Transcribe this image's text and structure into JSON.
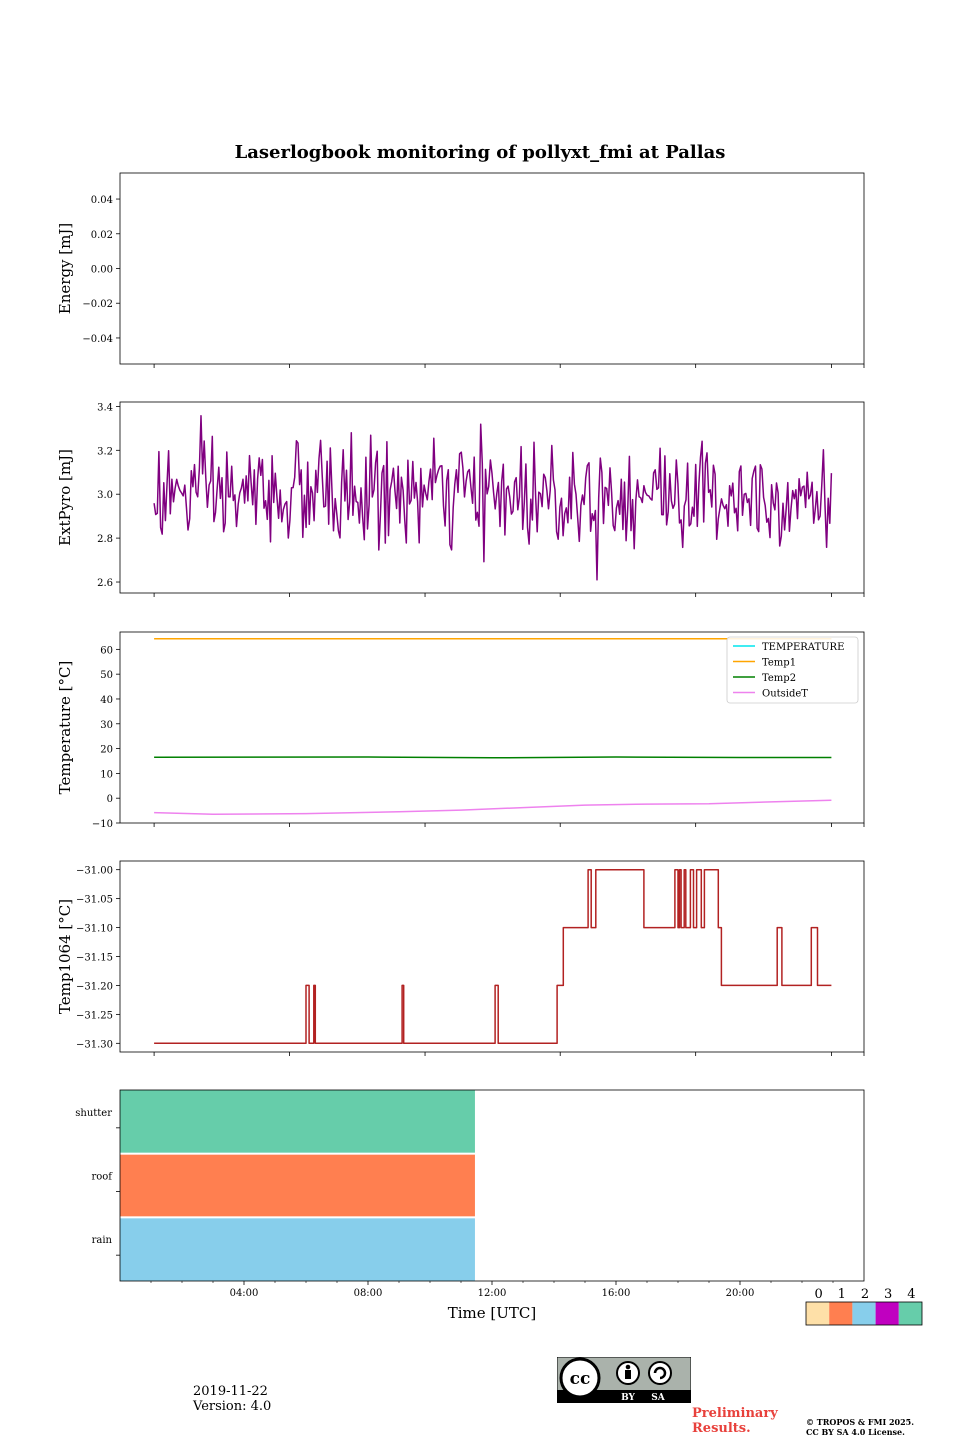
{
  "chart_data": {
    "title": "Laserlogbook monitoring of pollyxt_fmi at Pallas",
    "xlabel": "Time [UTC]",
    "x_range_hours": [
      0,
      24
    ],
    "x_ticks": [
      "04:00",
      "08:00",
      "12:00",
      "16:00",
      "20:00"
    ],
    "panels": [
      {
        "type": "line",
        "ylabel": "Energy [mJ]",
        "ylim": [
          -0.055,
          0.055
        ],
        "yticks": [
          "0.04",
          "0.02",
          "0.00",
          "−0.02",
          "−0.04"
        ],
        "series": []
      },
      {
        "type": "line",
        "ylabel": "ExtPyro [mJ]",
        "ylim": [
          2.55,
          3.42
        ],
        "yticks": [
          "3.4",
          "3.2",
          "3.0",
          "2.8",
          "2.6"
        ],
        "series": [
          {
            "name": "ExtPyro",
            "color": "#800080",
            "x_start": 1.1,
            "x_end": 22.95,
            "mean": 3.0,
            "std": 0.12,
            "n": 420
          }
        ]
      },
      {
        "type": "line",
        "ylabel": "Temperature [°C]",
        "ylim": [
          -10,
          67
        ],
        "yticks": [
          "60",
          "50",
          "40",
          "30",
          "20",
          "10",
          "0",
          "−10"
        ],
        "legend": [
          "TEMPERATURE",
          "Temp1",
          "Temp2",
          "OutsideT"
        ],
        "legend_position": "top-right",
        "series": [
          {
            "name": "TEMPERATURE",
            "color": "#00e5ee",
            "x": [],
            "y": []
          },
          {
            "name": "Temp1",
            "color": "#ffa500",
            "x": [
              1.1,
              22.95
            ],
            "y": [
              64.3,
              64.3
            ]
          },
          {
            "name": "Temp2",
            "color": "#008000",
            "x": [
              1.1,
              8,
              12,
              16,
              20,
              22.95
            ],
            "y": [
              16.5,
              16.6,
              16.3,
              16.6,
              16.4,
              16.4
            ]
          },
          {
            "name": "OutsideT",
            "color": "#ee82ee",
            "x": [
              1.1,
              3,
              6,
              9,
              11,
              13,
              15,
              17,
              19,
              21,
              22.95
            ],
            "y": [
              -5.8,
              -6.5,
              -6.2,
              -5.5,
              -4.8,
              -3.8,
              -2.8,
              -2.4,
              -2.2,
              -1.5,
              -0.8
            ]
          }
        ]
      },
      {
        "type": "line",
        "ylabel": "Temp1064 [°C]",
        "ylim": [
          -31.315,
          -30.985
        ],
        "yticks": [
          "−31.00",
          "−31.05",
          "−31.10",
          "−31.15",
          "−31.20",
          "−31.25",
          "−31.30"
        ],
        "series": [
          {
            "name": "Temp1064",
            "color": "#b22222",
            "x": [
              1.1,
              6.0,
              6.0,
              6.1,
              6.1,
              6.25,
              6.25,
              6.3,
              6.3,
              9.1,
              9.1,
              9.15,
              9.15,
              12.1,
              12.1,
              12.2,
              12.2,
              14.1,
              14.1,
              14.3,
              14.3,
              15.1,
              15.1,
              15.2,
              15.2,
              15.35,
              15.35,
              15.4,
              15.4,
              16.9,
              16.9,
              17.9,
              17.9,
              18.0,
              18.0,
              18.05,
              18.05,
              18.1,
              18.1,
              18.2,
              18.2,
              18.25,
              18.25,
              18.4,
              18.4,
              18.5,
              18.5,
              18.6,
              18.6,
              18.75,
              18.75,
              18.85,
              18.85,
              19.3,
              19.3,
              19.4,
              19.4,
              21.2,
              21.2,
              21.35,
              21.35,
              21.4,
              21.4,
              22.3,
              22.3,
              22.5,
              22.5,
              22.95
            ],
            "y": [
              -31.3,
              -31.3,
              -31.2,
              -31.2,
              -31.3,
              -31.3,
              -31.2,
              -31.2,
              -31.3,
              -31.3,
              -31.2,
              -31.2,
              -31.3,
              -31.3,
              -31.2,
              -31.2,
              -31.3,
              -31.3,
              -31.2,
              -31.2,
              -31.1,
              -31.1,
              -31.0,
              -31.0,
              -31.1,
              -31.1,
              -31.0,
              -31.0,
              -31.0,
              -31.0,
              -31.1,
              -31.1,
              -31.0,
              -31.0,
              -31.1,
              -31.1,
              -31.0,
              -31.0,
              -31.1,
              -31.1,
              -31.0,
              -31.0,
              -31.1,
              -31.1,
              -31.0,
              -31.0,
              -31.1,
              -31.1,
              -31.0,
              -31.0,
              -31.1,
              -31.1,
              -31.0,
              -31.0,
              -31.1,
              -31.1,
              -31.2,
              -31.2,
              -31.1,
              -31.1,
              -31.2,
              -31.2,
              -31.2,
              -31.2,
              -31.1,
              -31.1,
              -31.2,
              -31.2
            ]
          }
        ]
      },
      {
        "type": "heatmap",
        "rows": [
          "shutter",
          "roof",
          "rain"
        ],
        "x_start": 0,
        "x_end": 11.45,
        "row_status": [
          4,
          1,
          2
        ]
      }
    ],
    "colorbar": {
      "labels": [
        "0",
        "1",
        "2",
        "3",
        "4"
      ],
      "colors": [
        "#fee0a8",
        "#ff7f50",
        "#87ceeb",
        "#c000c0",
        "#66cdaa"
      ]
    }
  },
  "footer": {
    "date": "2019-11-22",
    "version": "Version: 4.0",
    "preliminary": "Preliminary Results.",
    "copyright_line1": "© TROPOS & FMI 2025.",
    "copyright_line2": "CC BY SA 4.0 License.",
    "license_badge_by": "BY",
    "license_badge_sa": "SA",
    "license_badge_cc": "cc"
  }
}
